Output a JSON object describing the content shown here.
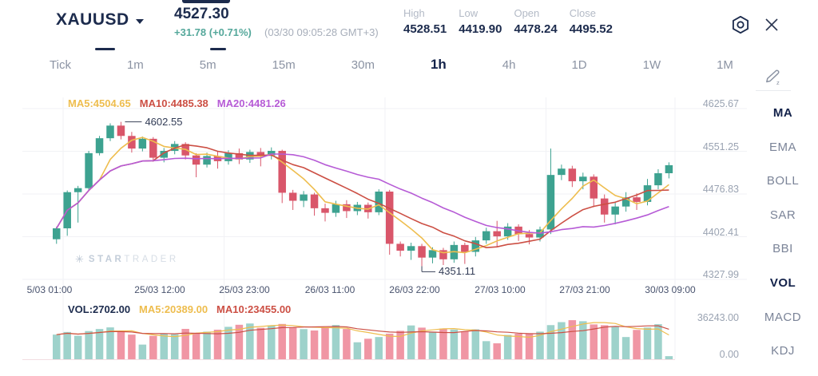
{
  "header": {
    "symbol": "XAUUSD",
    "price": "4527.30",
    "change": "+31.78 (+0.71%)",
    "timestamp": "(03/30 09:05:28 GMT+3)",
    "stats": [
      {
        "label": "High",
        "value": "4528.51"
      },
      {
        "label": "Low",
        "value": "4419.90"
      },
      {
        "label": "Open",
        "value": "4478.24"
      },
      {
        "label": "Close",
        "value": "4495.52"
      }
    ],
    "icons": {
      "dropdown": "caret-down",
      "settings": "hexagon-gear",
      "close": "x-cross"
    }
  },
  "timeframes": {
    "items": [
      "Tick",
      "1m",
      "5m",
      "15m",
      "30m",
      "1h",
      "4h",
      "1D",
      "1W",
      "1M"
    ],
    "selected": "1h",
    "draw_icon": "pencil-edit"
  },
  "sidebar": {
    "items": [
      {
        "label": "MA",
        "active": true
      },
      {
        "label": "EMA",
        "active": false
      },
      {
        "label": "BOLL",
        "active": false
      },
      {
        "label": "SAR",
        "active": false
      },
      {
        "label": "BBI",
        "active": false
      },
      {
        "label": "VOL",
        "active": true
      },
      {
        "label": "MACD",
        "active": false
      },
      {
        "label": "KDJ",
        "active": false
      }
    ]
  },
  "watermark": {
    "icon": "asterisk-star",
    "brand_bold": "STAR",
    "brand_light": "TRADER"
  },
  "colors": {
    "accent": "#1c2b4d",
    "positive": "#55a89b",
    "candle_up": "#3da290",
    "candle_down": "#d9566a",
    "volume_up": "#9ed2cb",
    "volume_down": "#f096a4",
    "ma5": "#eebd4e",
    "ma10": "#cc4f44",
    "ma20": "#b65bd6",
    "grid": "#f1f2f5",
    "baseline": "#f2dde1",
    "annotation_line": "#3a4258"
  },
  "chart_data": {
    "type": "candlestick+volume",
    "symbol": "XAUUSD",
    "interval": "1h",
    "price_legend": [
      {
        "text": "MA5:4504.65",
        "color": "#eebd4e"
      },
      {
        "text": "MA10:4485.38",
        "color": "#cc4f44"
      },
      {
        "text": "MA20:4481.26",
        "color": "#b65bd6"
      }
    ],
    "volume_legend": [
      {
        "text": "VOL:2702.00",
        "color": "#1c2b4d"
      },
      {
        "text": "MA5:20389.00",
        "color": "#eebd4e"
      },
      {
        "text": "MA10:23455.00",
        "color": "#cc4f44"
      }
    ],
    "annotations": {
      "high": "4602.55",
      "low": "4351.11"
    },
    "y_axis": {
      "ticks": [
        "4625.67",
        "4551.25",
        "4476.83",
        "4402.41",
        "4327.99"
      ]
    },
    "x_axis": {
      "labels": [
        "5/03 01:00",
        "25/03 12:00",
        "25/03 23:00",
        "26/03 11:00",
        "26/03 22:00",
        "27/03 10:00",
        "27/03 21:00",
        "30/03 09:00"
      ]
    },
    "volume_axis": {
      "max": 36243.0,
      "min": 0.0,
      "tick_labels": [
        "36243.00",
        "0.00"
      ]
    },
    "high_index": 6,
    "low_index": 34,
    "candles": [
      [
        4398,
        4420,
        4390,
        4417
      ],
      [
        4417,
        4483,
        4404,
        4480
      ],
      [
        4480,
        4491,
        4427,
        4487
      ],
      [
        4487,
        4552,
        4483,
        4548
      ],
      [
        4548,
        4578,
        4544,
        4574
      ],
      [
        4574,
        4600,
        4569,
        4596
      ],
      [
        4596,
        4602.55,
        4572,
        4578
      ],
      [
        4578,
        4585,
        4549,
        4556
      ],
      [
        4556,
        4577,
        4551,
        4573
      ],
      [
        4573,
        4576,
        4533,
        4540
      ],
      [
        4540,
        4557,
        4532,
        4552
      ],
      [
        4552,
        4569,
        4546,
        4564
      ],
      [
        4564,
        4567,
        4537,
        4544
      ],
      [
        4544,
        4548,
        4506,
        4528
      ],
      [
        4528,
        4549,
        4523,
        4543
      ],
      [
        4543,
        4551,
        4521,
        4534
      ],
      [
        4534,
        4553,
        4528,
        4548
      ],
      [
        4548,
        4556,
        4529,
        4537
      ],
      [
        4537,
        4554,
        4531,
        4550
      ],
      [
        4550,
        4557,
        4525,
        4544
      ],
      [
        4544,
        4558,
        4537,
        4552
      ],
      [
        4552,
        4554,
        4461,
        4479
      ],
      [
        4479,
        4484,
        4449,
        4465
      ],
      [
        4465,
        4482,
        4454,
        4476
      ],
      [
        4476,
        4479,
        4439,
        4452
      ],
      [
        4452,
        4460,
        4429,
        4444
      ],
      [
        4444,
        4465,
        4437,
        4459
      ],
      [
        4459,
        4466,
        4435,
        4447
      ],
      [
        4447,
        4463,
        4440,
        4458
      ],
      [
        4458,
        4462,
        4434,
        4445
      ],
      [
        4445,
        4485,
        4440,
        4481
      ],
      [
        4481,
        4484,
        4371,
        4390
      ],
      [
        4390,
        4394,
        4368,
        4378
      ],
      [
        4378,
        4392,
        4362,
        4386
      ],
      [
        4386,
        4390,
        4351.11,
        4366
      ],
      [
        4366,
        4384,
        4356,
        4379
      ],
      [
        4379,
        4383,
        4353,
        4363
      ],
      [
        4363,
        4394,
        4357,
        4388
      ],
      [
        4388,
        4392,
        4355,
        4376
      ],
      [
        4376,
        4402,
        4368,
        4396
      ],
      [
        4396,
        4418,
        4390,
        4412
      ],
      [
        4412,
        4430,
        4384,
        4403
      ],
      [
        4403,
        4426,
        4397,
        4420
      ],
      [
        4420,
        4424,
        4395,
        4407
      ],
      [
        4407,
        4414,
        4389,
        4401
      ],
      [
        4401,
        4420,
        4394,
        4415
      ],
      [
        4415,
        4556,
        4407,
        4510
      ],
      [
        4510,
        4528,
        4501,
        4521
      ],
      [
        4521,
        4526,
        4489,
        4499
      ],
      [
        4499,
        4514,
        4485,
        4507
      ],
      [
        4507,
        4511,
        4454,
        4469
      ],
      [
        4469,
        4476,
        4427,
        4441
      ],
      [
        4441,
        4462,
        4424,
        4455
      ],
      [
        4455,
        4480,
        4446,
        4471
      ],
      [
        4471,
        4478,
        4449,
        4463
      ],
      [
        4463,
        4503,
        4457,
        4492
      ],
      [
        4492,
        4520,
        4485,
        4513
      ],
      [
        4513,
        4532,
        4504,
        4527
      ]
    ],
    "volumes": [
      21500,
      23800,
      20500,
      24600,
      26400,
      27800,
      24200,
      21500,
      12800,
      20400,
      22600,
      21800,
      26500,
      22400,
      24100,
      25800,
      28300,
      30100,
      31200,
      27400,
      29600,
      30800,
      27900,
      26300,
      25100,
      27800,
      29900,
      26400,
      14800,
      17900,
      19400,
      22300,
      24800,
      29500,
      27600,
      24100,
      26800,
      25900,
      24400,
      26100,
      15800,
      13900,
      21200,
      22300,
      22700,
      24100,
      29800,
      32400,
      34100,
      33200,
      30400,
      29700,
      28800,
      19400,
      25600,
      27700,
      30600,
      2702
    ]
  }
}
